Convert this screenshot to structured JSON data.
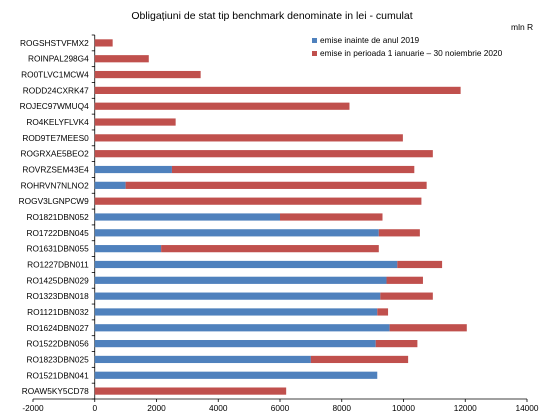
{
  "chart_data": {
    "type": "bar",
    "orientation": "horizontal",
    "stacked": true,
    "title": "Obligațiuni de stat tip benchmark denominate in lei - cumulat",
    "unit_label": "mln R",
    "xlim": [
      -2000,
      14000
    ],
    "xticks": [
      "-2000",
      "0",
      "2000",
      "4000",
      "6000",
      "8000",
      "10000",
      "12000",
      "14000"
    ],
    "legend_position": "top-right",
    "categories": [
      "ROGSHSTVFMX2",
      "ROINPAL298G4",
      "RO0TLVC1MCW4",
      "RODD24CXRK47",
      "ROJEC97WMUQ4",
      "RO4KELYFLVK4",
      "ROD9TE7MEES0",
      "ROGRXAE5BEO2",
      "ROVRZSEM43E4",
      "ROHRVN7NLNO2",
      "ROGV3LGNPCW9",
      "RO1821DBN052",
      "RO1722DBN045",
      "RO1631DBN055",
      "RO1227DBN011",
      "RO1425DBN029",
      "RO1323DBN018",
      "RO1121DBN032",
      "RO1624DBN027",
      "RO1522DBN056",
      "RO1823DBN025",
      "RO1521DBN041",
      "ROAW5KY5CD78"
    ],
    "series": [
      {
        "name": "emise inainte de anul 2019",
        "color": "#4f81bd",
        "values": [
          0,
          0,
          0,
          0,
          0,
          0,
          0,
          0,
          2500,
          1000,
          0,
          6000,
          9200,
          2150,
          9800,
          9450,
          9250,
          9150,
          9550,
          9100,
          7000,
          9150,
          0
        ]
      },
      {
        "name": "emise in perioada 1 ianuarie – 30 noiembrie 2020",
        "color": "#c0504d",
        "values": [
          580,
          1750,
          3430,
          11850,
          8250,
          2620,
          9980,
          10950,
          7850,
          9750,
          10580,
          3320,
          1330,
          7050,
          1450,
          1180,
          1700,
          350,
          2500,
          1350,
          3150,
          0,
          6200
        ]
      }
    ]
  }
}
